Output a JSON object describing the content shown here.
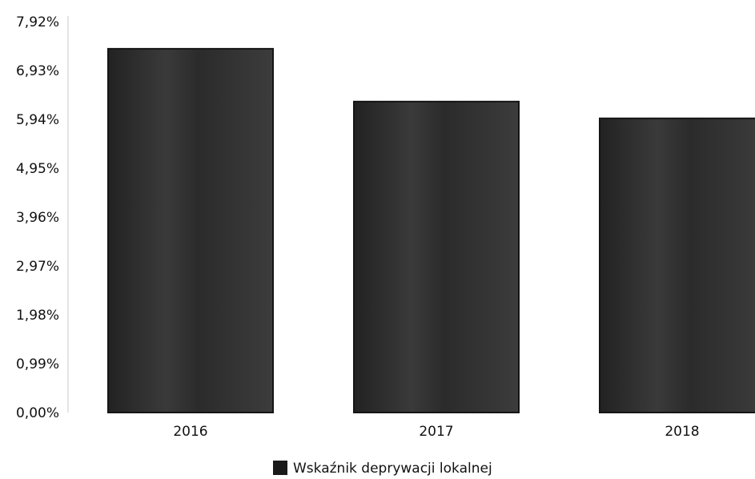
{
  "chart_data": {
    "type": "bar",
    "categories": [
      "2016",
      "2017",
      "2018"
    ],
    "series": [
      {
        "name": "Wskaźnik deprywacji lokalnej",
        "values": [
          7.37,
          6.3,
          5.96
        ]
      }
    ],
    "ylim": [
      0,
      7.92
    ],
    "yticks": [
      "0,00%",
      "0,99%",
      "1,98%",
      "2,97%",
      "3,96%",
      "4,95%",
      "5,94%",
      "6,93%",
      "7,92%"
    ],
    "grid": false,
    "legend": "bottom",
    "colors": {
      "bar": "#2e2e2e",
      "bar_edge": "#151515",
      "axis": "#e4e4e4"
    }
  }
}
